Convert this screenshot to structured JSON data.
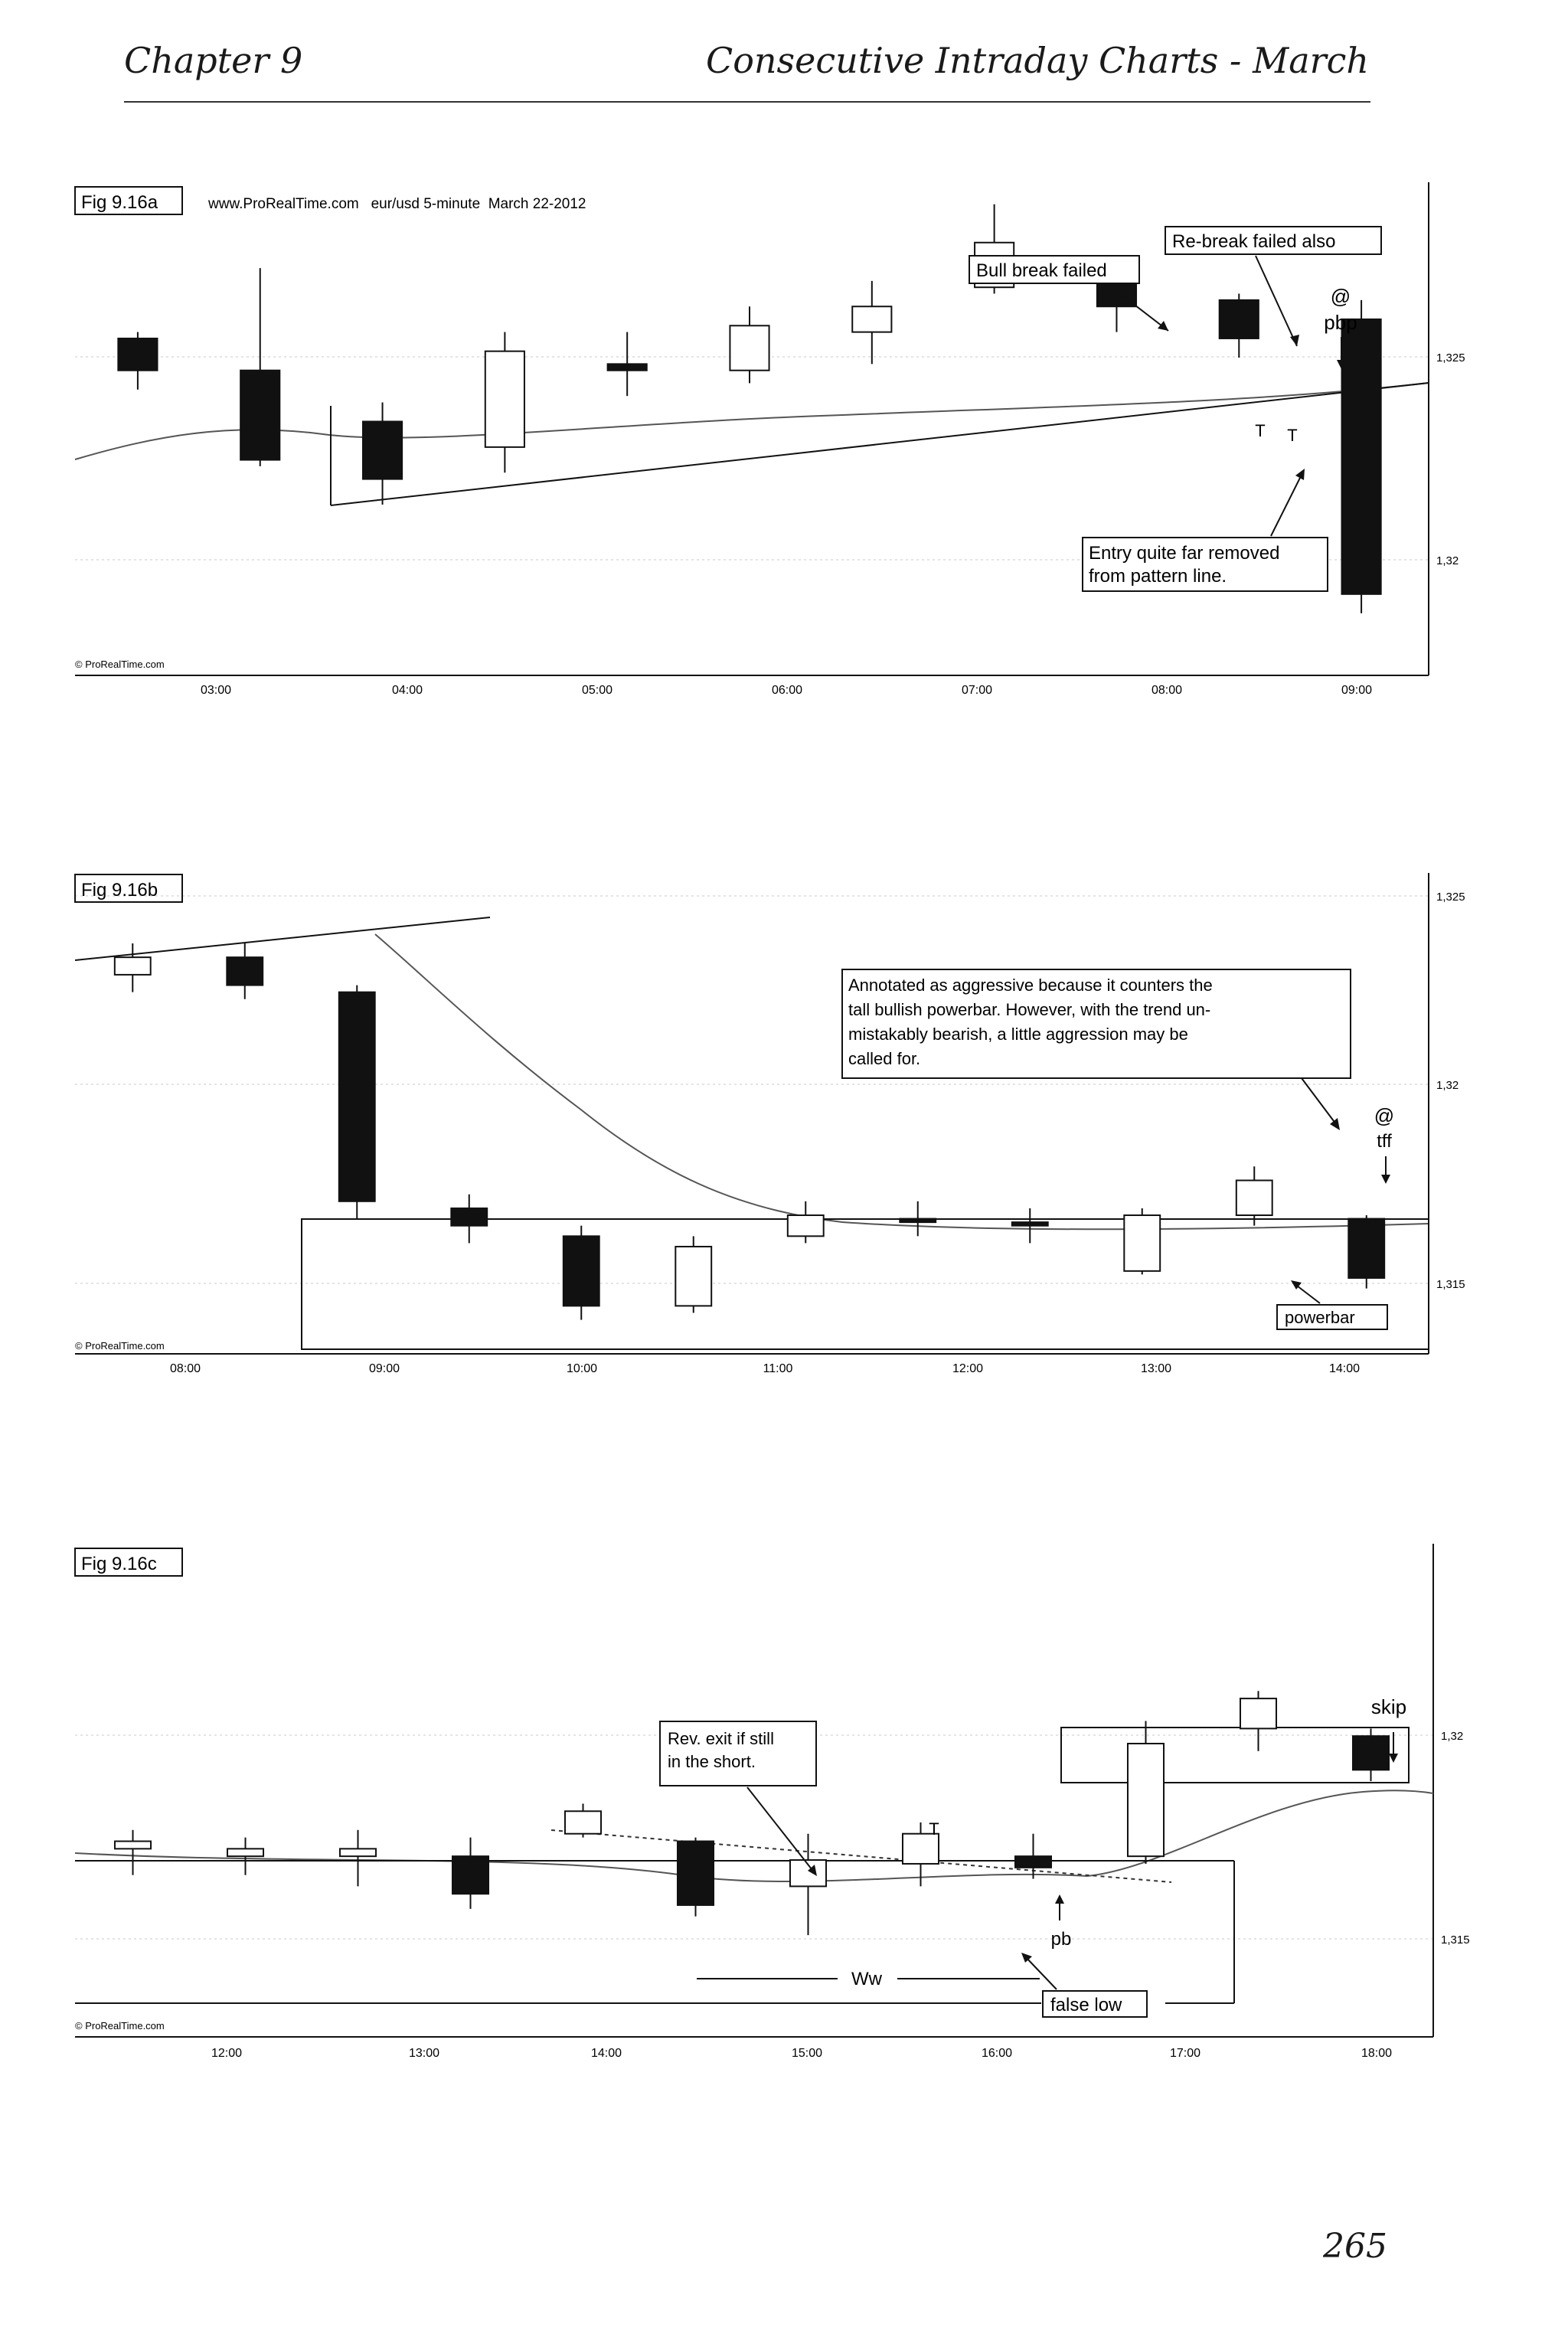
{
  "header": {
    "chapter": "Chapter 9",
    "section": "Consecutive Intraday Charts - March"
  },
  "page_number": "265",
  "colors": {
    "ink": "#111111",
    "grid": "#c8c8c8",
    "ema": "#555555",
    "page": "#ffffff"
  },
  "figures": [
    {
      "id": "Fig 9.16a",
      "caption": "www.ProRealTime.com   eur/usd 5-minute  March 22-2012",
      "watermark": "© ProRealTime.com",
      "price_labels": [
        "1,325",
        "1,32"
      ],
      "time_labels": [
        "03:00",
        "04:00",
        "05:00",
        "06:00",
        "07:00",
        "08:00",
        "09:00"
      ],
      "annotations": {
        "bull_break_failed": "Bull break failed",
        "rebreak_failed": "Re-break failed also",
        "at": "@",
        "pbp": "pbp",
        "t1": "T",
        "t2": "T",
        "entry_line1": "Entry quite far removed",
        "entry_line2": "from pattern line."
      }
    },
    {
      "id": "Fig 9.16b",
      "watermark": "© ProRealTime.com",
      "price_labels": [
        "1,325",
        "1,32",
        "1,315"
      ],
      "time_labels": [
        "08:00",
        "09:00",
        "10:00",
        "11:00",
        "12:00",
        "13:00",
        "14:00"
      ],
      "annotations": {
        "note_lines": [
          "Annotated as aggressive because it counters the",
          "tall bullish powerbar. However, with the trend un-",
          "mistakably bearish, a little aggression may be",
          "called for."
        ],
        "at": "@",
        "tff": "tff",
        "powerbar": "powerbar"
      }
    },
    {
      "id": "Fig 9.16c",
      "watermark": "© ProRealTime.com",
      "price_labels": [
        "1,32",
        "1,315"
      ],
      "time_labels": [
        "12:00",
        "13:00",
        "14:00",
        "15:00",
        "16:00",
        "17:00",
        "18:00"
      ],
      "annotations": {
        "rev_line1": "Rev. exit if still",
        "rev_line2": "in the short.",
        "t": "T",
        "skip": "skip",
        "pb": "pb",
        "ww": "Ww",
        "false_low": "false low"
      }
    }
  ],
  "chart_data": [
    {
      "type": "candlestick",
      "title": "eur/usd 5-minute March 22-2012",
      "x": [
        "03:00",
        "04:00",
        "05:00",
        "06:00",
        "07:00",
        "08:00",
        "09:00"
      ],
      "ylim": [
        1.3183,
        1.3258
      ],
      "series": [
        {
          "values": [
            [
              1.3235,
              1.3236,
              1.3227,
              1.323
            ],
            [
              1.323,
              1.3246,
              1.3215,
              1.3216
            ],
            [
              1.3222,
              1.3225,
              1.3209,
              1.3213
            ],
            [
              1.3218,
              1.3236,
              1.3214,
              1.3233
            ],
            [
              1.3231,
              1.3236,
              1.3226,
              1.323
            ],
            [
              1.323,
              1.324,
              1.3228,
              1.3237
            ],
            [
              1.3236,
              1.3244,
              1.3231,
              1.324
            ],
            [
              1.3243,
              1.3256,
              1.3242,
              1.325
            ],
            [
              1.3246,
              1.3247,
              1.3236,
              1.324
            ],
            [
              1.3241,
              1.3242,
              1.3232,
              1.3235
            ],
            [
              1.3238,
              1.3241,
              1.3192,
              1.3195
            ]
          ]
        }
      ]
    },
    {
      "type": "candlestick",
      "title": "",
      "x": [
        "08:00",
        "09:00",
        "10:00",
        "11:00",
        "12:00",
        "13:00",
        "14:00"
      ],
      "ylim": [
        1.3128,
        1.3262
      ],
      "series": [
        {
          "values": [
            [
              1.3235,
              1.3244,
              1.323,
              1.324
            ],
            [
              1.324,
              1.3244,
              1.3228,
              1.3232
            ],
            [
              1.323,
              1.3232,
              1.3165,
              1.317
            ],
            [
              1.3168,
              1.3172,
              1.3158,
              1.3163
            ],
            [
              1.316,
              1.3163,
              1.3136,
              1.314
            ],
            [
              1.314,
              1.316,
              1.3138,
              1.3157
            ],
            [
              1.316,
              1.317,
              1.3158,
              1.3166
            ],
            [
              1.3165,
              1.317,
              1.316,
              1.3164
            ],
            [
              1.3164,
              1.3168,
              1.3158,
              1.3163
            ],
            [
              1.315,
              1.3168,
              1.3149,
              1.3166
            ],
            [
              1.3166,
              1.318,
              1.3163,
              1.3176
            ],
            [
              1.3165,
              1.3166,
              1.3145,
              1.3148
            ]
          ]
        }
      ]
    },
    {
      "type": "candlestick",
      "title": "",
      "x": [
        "12:00",
        "13:00",
        "14:00",
        "15:00",
        "16:00",
        "17:00",
        "18:00"
      ],
      "ylim": [
        1.3122,
        1.3228
      ],
      "series": [
        {
          "values": [
            [
              1.3168,
              1.3173,
              1.3161,
              1.317
            ],
            [
              1.3166,
              1.3171,
              1.3161,
              1.3168
            ],
            [
              1.3166,
              1.3173,
              1.3158,
              1.3168
            ],
            [
              1.3166,
              1.3171,
              1.3152,
              1.3156
            ],
            [
              1.3172,
              1.318,
              1.3171,
              1.3178
            ],
            [
              1.317,
              1.3171,
              1.315,
              1.3153
            ],
            [
              1.3158,
              1.3172,
              1.3145,
              1.3165
            ],
            [
              1.3164,
              1.3175,
              1.3158,
              1.3172
            ],
            [
              1.3166,
              1.3172,
              1.316,
              1.3163
            ],
            [
              1.3166,
              1.3202,
              1.3164,
              1.3196
            ],
            [
              1.32,
              1.321,
              1.3194,
              1.3208
            ],
            [
              1.3198,
              1.32,
              1.3186,
              1.3189
            ]
          ]
        }
      ]
    }
  ]
}
